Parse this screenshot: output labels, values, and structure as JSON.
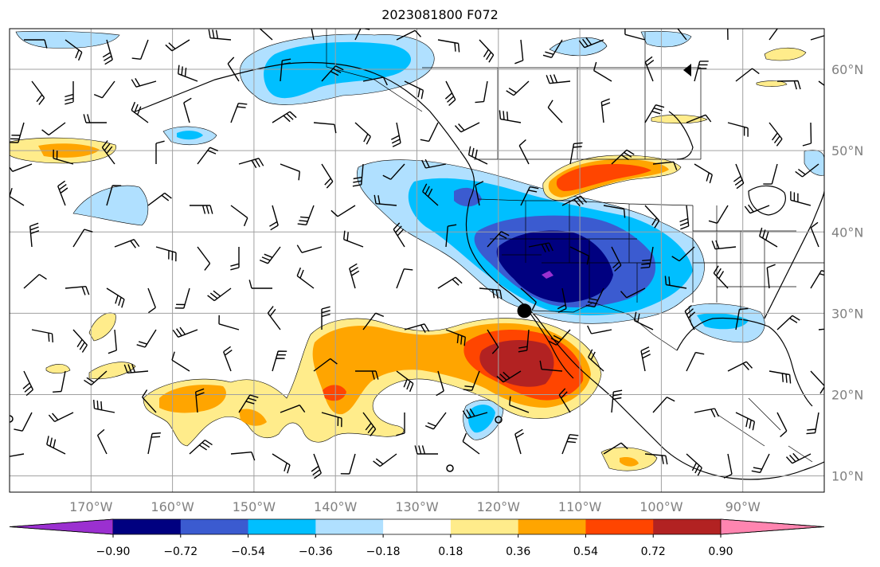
{
  "title": "2023081800 F072",
  "map": {
    "lon_range": [
      -180,
      -80
    ],
    "lat_range": [
      8,
      65
    ],
    "gridlines": true,
    "lon_ticks": [
      -170,
      -160,
      -150,
      -140,
      -130,
      -120,
      -110,
      -100,
      -90
    ],
    "lon_labels": [
      "170°W",
      "160°W",
      "150°W",
      "140°W",
      "130°W",
      "120°W",
      "110°W",
      "100°W",
      "90°W"
    ],
    "lat_ticks": [
      10,
      20,
      30,
      40,
      50,
      60
    ],
    "lat_labels": [
      "10°N",
      "20°N",
      "30°N",
      "40°N",
      "50°N",
      "60°N"
    ],
    "center_marker": {
      "lon": -116.8,
      "lat": 30.3
    }
  },
  "colorbar": {
    "levels": [
      "−0.90",
      "−0.72",
      "−0.54",
      "−0.36",
      "−0.18",
      "0.18",
      "0.36",
      "0.54",
      "0.72",
      "0.90"
    ],
    "colors": [
      "#9b30d0",
      "#000080",
      "#3b5bd0",
      "#00bfff",
      "#b0e0ff",
      "#ffffff",
      "#ffec8b",
      "#ffa500",
      "#ff4500",
      "#b22222",
      "#ff85b0"
    ]
  }
}
